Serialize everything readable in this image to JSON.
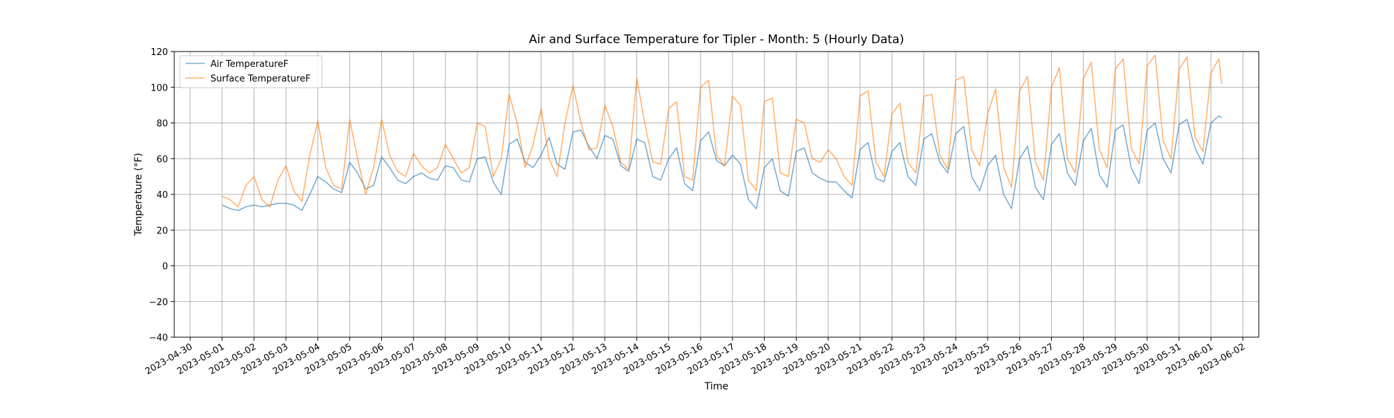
{
  "chart_data": {
    "type": "line",
    "title": "Air and Surface Temperature for Tipler - Month: 5 (Hourly Data)",
    "xlabel": "Time",
    "ylabel": "Temperature (°F)",
    "ylim": [
      -40,
      120
    ],
    "y_ticks": [
      -40,
      -20,
      0,
      20,
      40,
      60,
      80,
      100,
      120
    ],
    "xlim": [
      "2023-04-29T12:00",
      "2023-06-02T12:00"
    ],
    "x_ticks": [
      "2023-04-30",
      "2023-05-01",
      "2023-05-02",
      "2023-05-03",
      "2023-05-04",
      "2023-05-05",
      "2023-05-06",
      "2023-05-07",
      "2023-05-08",
      "2023-05-09",
      "2023-05-10",
      "2023-05-11",
      "2023-05-12",
      "2023-05-13",
      "2023-05-14",
      "2023-05-15",
      "2023-05-16",
      "2023-05-17",
      "2023-05-18",
      "2023-05-19",
      "2023-05-20",
      "2023-05-21",
      "2023-05-22",
      "2023-05-23",
      "2023-05-24",
      "2023-05-25",
      "2023-05-26",
      "2023-05-27",
      "2023-05-28",
      "2023-05-29",
      "2023-05-30",
      "2023-05-31",
      "2023-06-01",
      "2023-06-02"
    ],
    "grid": true,
    "legend_position": "top-left",
    "series": [
      {
        "name": "Air TemperatureF",
        "color": "#1f77b4",
        "points": [
          [
            "2023-05-01T00:00",
            34
          ],
          [
            "2023-05-01T06:00",
            32
          ],
          [
            "2023-05-01T12:00",
            31
          ],
          [
            "2023-05-01T18:00",
            33
          ],
          [
            "2023-05-02T00:00",
            34
          ],
          [
            "2023-05-02T06:00",
            33
          ],
          [
            "2023-05-02T12:00",
            34
          ],
          [
            "2023-05-02T18:00",
            35
          ],
          [
            "2023-05-03T00:00",
            35
          ],
          [
            "2023-05-03T06:00",
            34
          ],
          [
            "2023-05-03T12:00",
            31
          ],
          [
            "2023-05-03T18:00",
            40
          ],
          [
            "2023-05-04T00:00",
            50
          ],
          [
            "2023-05-04T06:00",
            47
          ],
          [
            "2023-05-04T12:00",
            43
          ],
          [
            "2023-05-04T18:00",
            41
          ],
          [
            "2023-05-05T00:00",
            58
          ],
          [
            "2023-05-05T06:00",
            52
          ],
          [
            "2023-05-05T12:00",
            43
          ],
          [
            "2023-05-05T18:00",
            45
          ],
          [
            "2023-05-06T00:00",
            61
          ],
          [
            "2023-05-06T06:00",
            55
          ],
          [
            "2023-05-06T12:00",
            48
          ],
          [
            "2023-05-06T18:00",
            46
          ],
          [
            "2023-05-07T00:00",
            50
          ],
          [
            "2023-05-07T06:00",
            52
          ],
          [
            "2023-05-07T12:00",
            49
          ],
          [
            "2023-05-07T18:00",
            48
          ],
          [
            "2023-05-08T00:00",
            56
          ],
          [
            "2023-05-08T06:00",
            55
          ],
          [
            "2023-05-08T12:00",
            48
          ],
          [
            "2023-05-08T18:00",
            47
          ],
          [
            "2023-05-09T00:00",
            60
          ],
          [
            "2023-05-09T06:00",
            61
          ],
          [
            "2023-05-09T12:00",
            47
          ],
          [
            "2023-05-09T18:00",
            40
          ],
          [
            "2023-05-10T00:00",
            68
          ],
          [
            "2023-05-10T06:00",
            71
          ],
          [
            "2023-05-10T12:00",
            58
          ],
          [
            "2023-05-10T18:00",
            55
          ],
          [
            "2023-05-11T00:00",
            62
          ],
          [
            "2023-05-11T06:00",
            72
          ],
          [
            "2023-05-11T12:00",
            57
          ],
          [
            "2023-05-11T18:00",
            54
          ],
          [
            "2023-05-12T00:00",
            75
          ],
          [
            "2023-05-12T06:00",
            76
          ],
          [
            "2023-05-12T12:00",
            67
          ],
          [
            "2023-05-12T18:00",
            60
          ],
          [
            "2023-05-13T00:00",
            73
          ],
          [
            "2023-05-13T06:00",
            71
          ],
          [
            "2023-05-13T12:00",
            56
          ],
          [
            "2023-05-13T18:00",
            53
          ],
          [
            "2023-05-14T00:00",
            71
          ],
          [
            "2023-05-14T06:00",
            69
          ],
          [
            "2023-05-14T12:00",
            50
          ],
          [
            "2023-05-14T18:00",
            48
          ],
          [
            "2023-05-15T00:00",
            60
          ],
          [
            "2023-05-15T06:00",
            66
          ],
          [
            "2023-05-15T12:00",
            46
          ],
          [
            "2023-05-15T18:00",
            42
          ],
          [
            "2023-05-16T00:00",
            70
          ],
          [
            "2023-05-16T06:00",
            75
          ],
          [
            "2023-05-16T12:00",
            59
          ],
          [
            "2023-05-16T18:00",
            56
          ],
          [
            "2023-05-17T00:00",
            62
          ],
          [
            "2023-05-17T06:00",
            57
          ],
          [
            "2023-05-17T12:00",
            37
          ],
          [
            "2023-05-17T18:00",
            32
          ],
          [
            "2023-05-18T00:00",
            55
          ],
          [
            "2023-05-18T06:00",
            60
          ],
          [
            "2023-05-18T12:00",
            42
          ],
          [
            "2023-05-18T18:00",
            39
          ],
          [
            "2023-05-19T00:00",
            64
          ],
          [
            "2023-05-19T06:00",
            66
          ],
          [
            "2023-05-19T12:00",
            52
          ],
          [
            "2023-05-19T18:00",
            49
          ],
          [
            "2023-05-20T00:00",
            47
          ],
          [
            "2023-05-20T06:00",
            47
          ],
          [
            "2023-05-20T12:00",
            42
          ],
          [
            "2023-05-20T18:00",
            38
          ],
          [
            "2023-05-21T00:00",
            65
          ],
          [
            "2023-05-21T06:00",
            69
          ],
          [
            "2023-05-21T12:00",
            49
          ],
          [
            "2023-05-21T18:00",
            47
          ],
          [
            "2023-05-22T00:00",
            64
          ],
          [
            "2023-05-22T06:00",
            69
          ],
          [
            "2023-05-22T12:00",
            50
          ],
          [
            "2023-05-22T18:00",
            45
          ],
          [
            "2023-05-23T00:00",
            71
          ],
          [
            "2023-05-23T06:00",
            74
          ],
          [
            "2023-05-23T12:00",
            58
          ],
          [
            "2023-05-23T18:00",
            52
          ],
          [
            "2023-05-24T00:00",
            74
          ],
          [
            "2023-05-24T06:00",
            78
          ],
          [
            "2023-05-24T12:00",
            50
          ],
          [
            "2023-05-24T18:00",
            42
          ],
          [
            "2023-05-25T00:00",
            56
          ],
          [
            "2023-05-25T06:00",
            62
          ],
          [
            "2023-05-25T12:00",
            40
          ],
          [
            "2023-05-25T18:00",
            32
          ],
          [
            "2023-05-26T00:00",
            60
          ],
          [
            "2023-05-26T06:00",
            67
          ],
          [
            "2023-05-26T12:00",
            44
          ],
          [
            "2023-05-26T18:00",
            37
          ],
          [
            "2023-05-27T00:00",
            68
          ],
          [
            "2023-05-27T06:00",
            74
          ],
          [
            "2023-05-27T12:00",
            52
          ],
          [
            "2023-05-27T18:00",
            45
          ],
          [
            "2023-05-28T00:00",
            70
          ],
          [
            "2023-05-28T06:00",
            77
          ],
          [
            "2023-05-28T12:00",
            51
          ],
          [
            "2023-05-28T18:00",
            44
          ],
          [
            "2023-05-29T00:00",
            76
          ],
          [
            "2023-05-29T06:00",
            79
          ],
          [
            "2023-05-29T12:00",
            55
          ],
          [
            "2023-05-29T18:00",
            46
          ],
          [
            "2023-05-30T00:00",
            76
          ],
          [
            "2023-05-30T06:00",
            80
          ],
          [
            "2023-05-30T12:00",
            60
          ],
          [
            "2023-05-30T18:00",
            52
          ],
          [
            "2023-05-31T00:00",
            79
          ],
          [
            "2023-05-31T06:00",
            82
          ],
          [
            "2023-05-31T12:00",
            66
          ],
          [
            "2023-05-31T18:00",
            57
          ],
          [
            "2023-06-01T00:00",
            80
          ],
          [
            "2023-06-01T06:00",
            84
          ],
          [
            "2023-06-01T08:00",
            83
          ]
        ]
      },
      {
        "name": "Surface TemperatureF",
        "color": "#ff7f0e",
        "points": [
          [
            "2023-05-01T00:00",
            39
          ],
          [
            "2023-05-01T06:00",
            37
          ],
          [
            "2023-05-01T12:00",
            33
          ],
          [
            "2023-05-01T18:00",
            45
          ],
          [
            "2023-05-02T00:00",
            50
          ],
          [
            "2023-05-02T06:00",
            37
          ],
          [
            "2023-05-02T12:00",
            33
          ],
          [
            "2023-05-02T18:00",
            48
          ],
          [
            "2023-05-03T00:00",
            56
          ],
          [
            "2023-05-03T06:00",
            42
          ],
          [
            "2023-05-03T12:00",
            36
          ],
          [
            "2023-05-03T18:00",
            62
          ],
          [
            "2023-05-04T00:00",
            81
          ],
          [
            "2023-05-04T06:00",
            55
          ],
          [
            "2023-05-04T12:00",
            45
          ],
          [
            "2023-05-04T18:00",
            43
          ],
          [
            "2023-05-05T00:00",
            82
          ],
          [
            "2023-05-05T06:00",
            60
          ],
          [
            "2023-05-05T12:00",
            40
          ],
          [
            "2023-05-05T18:00",
            55
          ],
          [
            "2023-05-06T00:00",
            82
          ],
          [
            "2023-05-06T06:00",
            62
          ],
          [
            "2023-05-06T12:00",
            53
          ],
          [
            "2023-05-06T18:00",
            50
          ],
          [
            "2023-05-07T00:00",
            63
          ],
          [
            "2023-05-07T06:00",
            56
          ],
          [
            "2023-05-07T12:00",
            52
          ],
          [
            "2023-05-07T18:00",
            55
          ],
          [
            "2023-05-08T00:00",
            68
          ],
          [
            "2023-05-08T06:00",
            60
          ],
          [
            "2023-05-08T12:00",
            52
          ],
          [
            "2023-05-08T18:00",
            55
          ],
          [
            "2023-05-09T00:00",
            80
          ],
          [
            "2023-05-09T06:00",
            78
          ],
          [
            "2023-05-09T12:00",
            50
          ],
          [
            "2023-05-09T18:00",
            60
          ],
          [
            "2023-05-10T00:00",
            96
          ],
          [
            "2023-05-10T06:00",
            80
          ],
          [
            "2023-05-10T12:00",
            55
          ],
          [
            "2023-05-10T18:00",
            68
          ],
          [
            "2023-05-11T00:00",
            88
          ],
          [
            "2023-05-11T06:00",
            60
          ],
          [
            "2023-05-11T12:00",
            50
          ],
          [
            "2023-05-11T18:00",
            80
          ],
          [
            "2023-05-12T00:00",
            101
          ],
          [
            "2023-05-12T06:00",
            80
          ],
          [
            "2023-05-12T12:00",
            65
          ],
          [
            "2023-05-12T18:00",
            66
          ],
          [
            "2023-05-13T00:00",
            90
          ],
          [
            "2023-05-13T06:00",
            78
          ],
          [
            "2023-05-13T12:00",
            58
          ],
          [
            "2023-05-13T18:00",
            54
          ],
          [
            "2023-05-14T00:00",
            105
          ],
          [
            "2023-05-14T06:00",
            80
          ],
          [
            "2023-05-14T12:00",
            58
          ],
          [
            "2023-05-14T18:00",
            57
          ],
          [
            "2023-05-15T00:00",
            88
          ],
          [
            "2023-05-15T06:00",
            92
          ],
          [
            "2023-05-15T12:00",
            50
          ],
          [
            "2023-05-15T18:00",
            48
          ],
          [
            "2023-05-16T00:00",
            100
          ],
          [
            "2023-05-16T06:00",
            104
          ],
          [
            "2023-05-16T12:00",
            62
          ],
          [
            "2023-05-16T18:00",
            56
          ],
          [
            "2023-05-17T00:00",
            95
          ],
          [
            "2023-05-17T06:00",
            90
          ],
          [
            "2023-05-17T12:00",
            48
          ],
          [
            "2023-05-17T18:00",
            42
          ],
          [
            "2023-05-18T00:00",
            92
          ],
          [
            "2023-05-18T06:00",
            94
          ],
          [
            "2023-05-18T12:00",
            52
          ],
          [
            "2023-05-18T18:00",
            50
          ],
          [
            "2023-05-19T00:00",
            82
          ],
          [
            "2023-05-19T06:00",
            80
          ],
          [
            "2023-05-19T12:00",
            60
          ],
          [
            "2023-05-19T18:00",
            58
          ],
          [
            "2023-05-20T00:00",
            65
          ],
          [
            "2023-05-20T06:00",
            60
          ],
          [
            "2023-05-20T12:00",
            50
          ],
          [
            "2023-05-20T18:00",
            45
          ],
          [
            "2023-05-21T00:00",
            95
          ],
          [
            "2023-05-21T06:00",
            98
          ],
          [
            "2023-05-21T12:00",
            58
          ],
          [
            "2023-05-21T18:00",
            50
          ],
          [
            "2023-05-22T00:00",
            85
          ],
          [
            "2023-05-22T06:00",
            91
          ],
          [
            "2023-05-22T12:00",
            58
          ],
          [
            "2023-05-22T18:00",
            52
          ],
          [
            "2023-05-23T00:00",
            95
          ],
          [
            "2023-05-23T06:00",
            96
          ],
          [
            "2023-05-23T12:00",
            62
          ],
          [
            "2023-05-23T18:00",
            54
          ],
          [
            "2023-05-24T00:00",
            104
          ],
          [
            "2023-05-24T06:00",
            106
          ],
          [
            "2023-05-24T12:00",
            65
          ],
          [
            "2023-05-24T18:00",
            56
          ],
          [
            "2023-05-25T00:00",
            85
          ],
          [
            "2023-05-25T06:00",
            99
          ],
          [
            "2023-05-25T12:00",
            55
          ],
          [
            "2023-05-25T18:00",
            44
          ],
          [
            "2023-05-26T00:00",
            98
          ],
          [
            "2023-05-26T06:00",
            106
          ],
          [
            "2023-05-26T12:00",
            58
          ],
          [
            "2023-05-26T18:00",
            48
          ],
          [
            "2023-05-27T00:00",
            100
          ],
          [
            "2023-05-27T06:00",
            111
          ],
          [
            "2023-05-27T12:00",
            60
          ],
          [
            "2023-05-27T18:00",
            52
          ],
          [
            "2023-05-28T00:00",
            105
          ],
          [
            "2023-05-28T06:00",
            114
          ],
          [
            "2023-05-28T12:00",
            65
          ],
          [
            "2023-05-28T18:00",
            55
          ],
          [
            "2023-05-29T00:00",
            110
          ],
          [
            "2023-05-29T06:00",
            116
          ],
          [
            "2023-05-29T12:00",
            66
          ],
          [
            "2023-05-29T18:00",
            57
          ],
          [
            "2023-05-30T00:00",
            112
          ],
          [
            "2023-05-30T06:00",
            118
          ],
          [
            "2023-05-30T12:00",
            70
          ],
          [
            "2023-05-30T18:00",
            60
          ],
          [
            "2023-05-31T00:00",
            110
          ],
          [
            "2023-05-31T06:00",
            117
          ],
          [
            "2023-05-31T12:00",
            72
          ],
          [
            "2023-05-31T18:00",
            64
          ],
          [
            "2023-06-01T00:00",
            108
          ],
          [
            "2023-06-01T06:00",
            116
          ],
          [
            "2023-06-01T08:00",
            102
          ]
        ]
      }
    ]
  }
}
